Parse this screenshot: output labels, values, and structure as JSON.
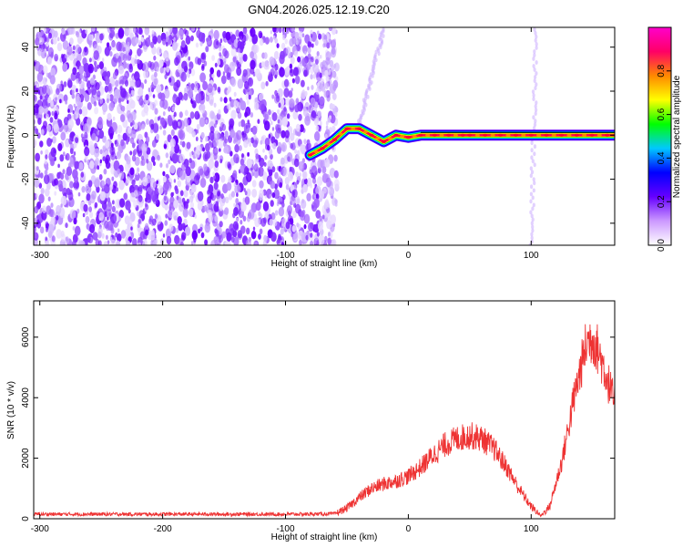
{
  "title": "GN04.2026.025.12.19.C20",
  "chart_data": [
    {
      "type": "heatmap",
      "name": "spectrogram",
      "xlabel": "Height of straight line (km)",
      "ylabel": "Frequency (Hz)",
      "xlim": [
        -305,
        168
      ],
      "ylim": [
        -50,
        49
      ],
      "xticks": [
        -300,
        -200,
        -100,
        0,
        100
      ],
      "yticks": [
        -40,
        -20,
        0,
        20,
        40
      ],
      "grid": false,
      "colorbar": {
        "label": "Normalized spectral amplitude",
        "range": [
          0,
          1
        ],
        "ticks": [
          "0.0",
          "0.2",
          "0.4",
          "0.6",
          "0.8"
        ],
        "tick_values": [
          0.0,
          0.2,
          0.4,
          0.6,
          0.8
        ],
        "colors": [
          "#ffffff",
          "#cc99ff",
          "#6600ff",
          "#0000ff",
          "#00c8ff",
          "#00ff00",
          "#ffff00",
          "#ff8800",
          "#ff0066",
          "#ff00cc"
        ]
      },
      "noise_region_x": [
        -305,
        -58
      ],
      "signal_track": [
        {
          "x": -80,
          "y": -9
        },
        {
          "x": -70,
          "y": -6
        },
        {
          "x": -60,
          "y": -2
        },
        {
          "x": -50,
          "y": 3
        },
        {
          "x": -40,
          "y": 3
        },
        {
          "x": -30,
          "y": 0
        },
        {
          "x": -20,
          "y": -3
        },
        {
          "x": -10,
          "y": 0
        },
        {
          "x": 0,
          "y": -1
        },
        {
          "x": 10,
          "y": 0
        },
        {
          "x": 50,
          "y": 0
        },
        {
          "x": 100,
          "y": 0
        },
        {
          "x": 168,
          "y": 0
        }
      ],
      "faint_streaks": [
        {
          "x0": -40,
          "y0": 5,
          "x1": -20,
          "y1": 48
        },
        {
          "x0": 100,
          "y0": -50,
          "x1": 104,
          "y1": 48
        }
      ]
    },
    {
      "type": "line",
      "name": "snr",
      "xlabel": "Height of straight line (km)",
      "ylabel": "SNR (10 * v/v)",
      "xlim": [
        -305,
        168
      ],
      "ylim": [
        0,
        7200
      ],
      "xticks": [
        -300,
        -200,
        -100,
        0,
        100
      ],
      "yticks": [
        0,
        2000,
        4000,
        6000
      ],
      "grid": false,
      "series": [
        {
          "name": "SNR",
          "color": "#ee3333",
          "points": [
            {
              "x": -305,
              "y": 150
            },
            {
              "x": -250,
              "y": 150
            },
            {
              "x": -200,
              "y": 150
            },
            {
              "x": -150,
              "y": 150
            },
            {
              "x": -100,
              "y": 150
            },
            {
              "x": -60,
              "y": 160
            },
            {
              "x": -50,
              "y": 350
            },
            {
              "x": -40,
              "y": 700
            },
            {
              "x": -30,
              "y": 1000
            },
            {
              "x": -20,
              "y": 1150
            },
            {
              "x": -10,
              "y": 1250
            },
            {
              "x": 0,
              "y": 1400
            },
            {
              "x": 10,
              "y": 1700
            },
            {
              "x": 20,
              "y": 2100
            },
            {
              "x": 30,
              "y": 2450
            },
            {
              "x": 40,
              "y": 2650
            },
            {
              "x": 50,
              "y": 2750
            },
            {
              "x": 60,
              "y": 2650
            },
            {
              "x": 70,
              "y": 2300
            },
            {
              "x": 80,
              "y": 1700
            },
            {
              "x": 90,
              "y": 1000
            },
            {
              "x": 100,
              "y": 400
            },
            {
              "x": 108,
              "y": 100
            },
            {
              "x": 115,
              "y": 400
            },
            {
              "x": 125,
              "y": 1900
            },
            {
              "x": 135,
              "y": 4000
            },
            {
              "x": 145,
              "y": 5800
            },
            {
              "x": 150,
              "y": 6000
            },
            {
              "x": 155,
              "y": 5500
            },
            {
              "x": 160,
              "y": 4900
            },
            {
              "x": 168,
              "y": 3800
            }
          ]
        }
      ]
    }
  ]
}
